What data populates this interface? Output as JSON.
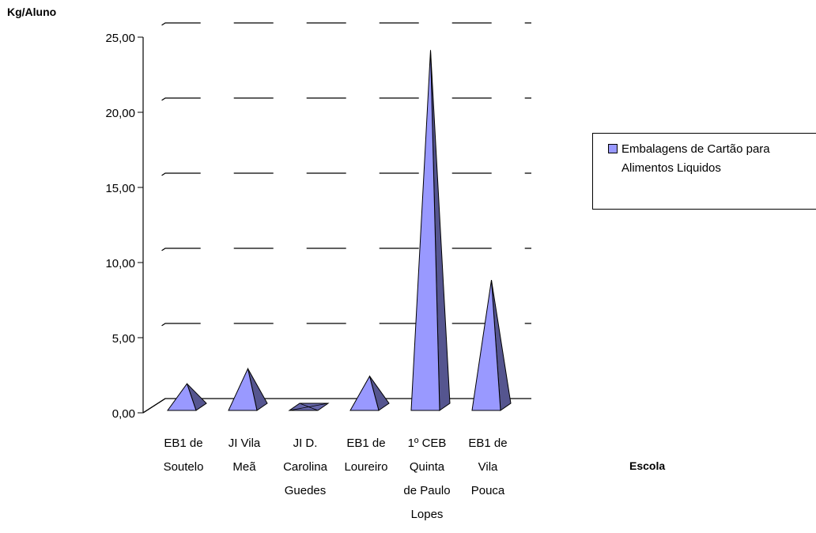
{
  "chart_data": {
    "type": "bar",
    "bar_shape": "pyramid",
    "ylabel": "Kg/Aluno",
    "xlabel": "Escola",
    "ylim": [
      0,
      25
    ],
    "yticks": [
      "0,00",
      "5,00",
      "10,00",
      "15,00",
      "20,00",
      "25,00"
    ],
    "grid": true,
    "legend_position": "right",
    "categories": [
      [
        "EB1 de",
        "Soutelo"
      ],
      [
        "JI Vila",
        "Meã"
      ],
      [
        "JI D.",
        "Carolina",
        "Guedes"
      ],
      [
        "EB1 de",
        "Loureiro"
      ],
      [
        "1º CEB",
        "Quinta",
        "de Paulo",
        "Lopes"
      ],
      [
        "EB1 de",
        "Vila",
        "Pouca"
      ]
    ],
    "series": [
      {
        "name": "Embalagens de Cartão para Alimentos Liquidos",
        "values": [
          1.7,
          2.7,
          0.0,
          2.2,
          23.9,
          8.6
        ],
        "color": "#9999ff"
      }
    ]
  }
}
